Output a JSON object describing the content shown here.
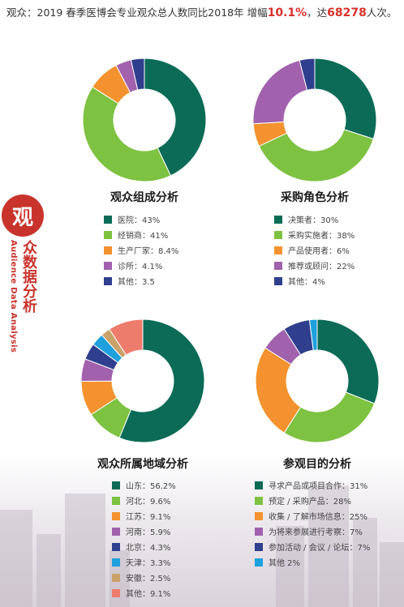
{
  "headline": {
    "prefix": "观众：2019 春季医博会专业观众总人数同比2018年 增幅",
    "growth": "10.1%",
    "middle": "，达",
    "total": "68278",
    "suffix": "人次。"
  },
  "side": {
    "badge": "观",
    "title_cn": "众数据分析",
    "title_en": "Audience Data Analysis"
  },
  "colors": {
    "accent": "#c8342c",
    "dark_green": "#0b6b57",
    "light_green": "#7ec242",
    "orange": "#f3922e",
    "purple": "#a161ad",
    "navy": "#2f3f8e",
    "sky": "#1ea0dc",
    "tan": "#c9a26a",
    "salmon": "#ee7c6c"
  },
  "chart_data": [
    {
      "type": "pie",
      "title": "观众组成分析",
      "labels": [
        "医院",
        "经销商",
        "生产厂家",
        "诊所",
        "其他"
      ],
      "values": [
        43,
        41,
        8.4,
        4.1,
        3.5
      ],
      "legend_text": [
        "医院：43%",
        "经销商：41%",
        "生产厂家：8.4%",
        "诊所：4.1%",
        "其他：3.5"
      ],
      "colors": [
        "#0b6b57",
        "#7ec242",
        "#f3922e",
        "#a161ad",
        "#2f3f8e"
      ]
    },
    {
      "type": "pie",
      "title": "采购角色分析",
      "labels": [
        "决策者",
        "采购实施者",
        "产品使用者",
        "推荐或顾问",
        "其他"
      ],
      "values": [
        30,
        38,
        6,
        22,
        4
      ],
      "legend_text": [
        "决策者：30%",
        "采购实施者：38%",
        "产品使用者：6%",
        "推荐或顾问：22%",
        "其他：4%"
      ],
      "colors": [
        "#0b6b57",
        "#7ec242",
        "#f3922e",
        "#a161ad",
        "#2f3f8e"
      ]
    },
    {
      "type": "pie",
      "title": "观众所属地域分析",
      "labels": [
        "山东",
        "河北",
        "江苏",
        "河南",
        "北京",
        "天津",
        "安徽",
        "其他"
      ],
      "values": [
        56.2,
        9.6,
        9.1,
        5.9,
        4.3,
        3.3,
        2.5,
        9.1
      ],
      "legend_text": [
        "山东：56.2%",
        "河北：9.6%",
        "江苏：9.1%",
        "河南：5.9%",
        "北京：4.3%",
        "天津：3.3%",
        "安徽：2.5%",
        "其他：9.1%"
      ],
      "colors": [
        "#0b6b57",
        "#7ec242",
        "#f3922e",
        "#a161ad",
        "#2f3f8e",
        "#1ea0dc",
        "#c9a26a",
        "#ee7c6c"
      ]
    },
    {
      "type": "pie",
      "title": "参观目的分析",
      "labels": [
        "寻求产品或项目合作",
        "预定 / 采购产品",
        "收集 / 了解市场信息",
        "为将来参展进行考察",
        "参加活动 / 会议 / 论坛",
        "其他"
      ],
      "values": [
        31,
        28,
        25,
        7,
        7,
        2
      ],
      "legend_text": [
        "寻求产品或项目合作：31%",
        "预定 / 采购产品：28%",
        "收集 / 了解市场信息：25%",
        "为将来参展进行考察：7%",
        "参加活动 / 会议 / 论坛：7%",
        "其他 2%"
      ],
      "colors": [
        "#0b6b57",
        "#7ec242",
        "#f3922e",
        "#a161ad",
        "#2f3f8e",
        "#1ea0dc"
      ]
    }
  ]
}
